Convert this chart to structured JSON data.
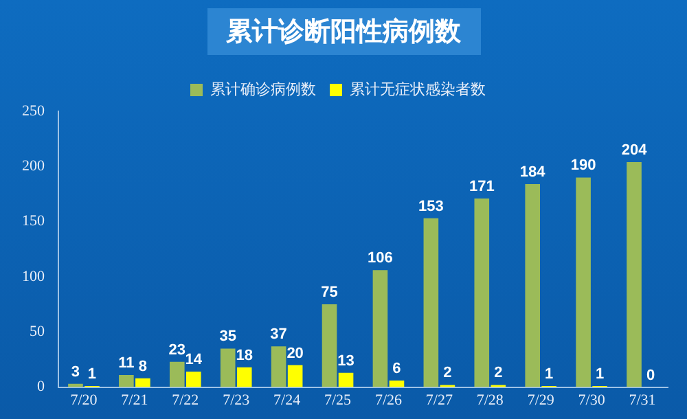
{
  "chart_data": {
    "type": "bar",
    "title": "累计诊断阳性病例数",
    "categories": [
      "7/20",
      "7/21",
      "7/22",
      "7/23",
      "7/24",
      "7/25",
      "7/26",
      "7/27",
      "7/28",
      "7/29",
      "7/30",
      "7/31"
    ],
    "series": [
      {
        "name": "累计确诊病例数",
        "color": "#9bbb59",
        "values": [
          3,
          11,
          23,
          35,
          37,
          75,
          106,
          153,
          171,
          184,
          190,
          204
        ]
      },
      {
        "name": "累计无症状感染者数",
        "color": "#ffff00",
        "values": [
          1,
          8,
          14,
          18,
          20,
          13,
          6,
          2,
          2,
          1,
          1,
          0
        ]
      }
    ],
    "ylim": [
      0,
      250
    ],
    "yticks": [
      0,
      50,
      100,
      150,
      200,
      250
    ],
    "grid": false,
    "legend": "top",
    "data_labels": true
  }
}
